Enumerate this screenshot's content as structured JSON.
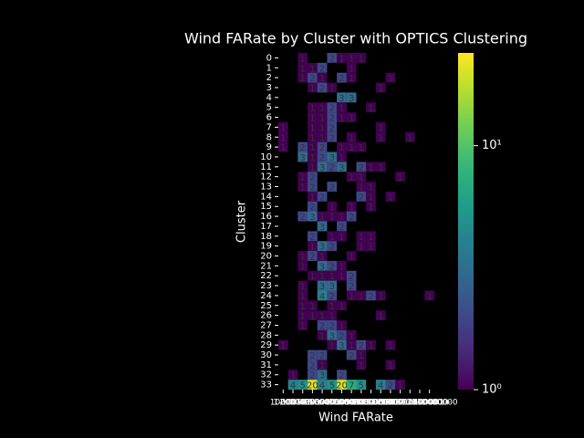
{
  "chart_data": {
    "type": "heatmap",
    "title": "Wind FARate by Cluster with OPTICS Clustering",
    "x_label": "Wind FARate",
    "y_label": "Cluster",
    "x_categories": [
      "0",
      "1-100000",
      "100001-200000",
      "200001-300000",
      "300001-400000",
      "400001-500000",
      "500001-600000",
      "600001-700000",
      "700001-800000",
      "800001-900000",
      "900001-1000000",
      "1000001-1100000",
      "1100001-1200000",
      "1200001-1300000",
      "1300001-1400000",
      "1400001+"
    ],
    "y_categories": [
      "0",
      "1",
      "2",
      "3",
      "4",
      "5",
      "6",
      "7",
      "8",
      "9",
      "10",
      "11",
      "12",
      "13",
      "14",
      "15",
      "16",
      "17",
      "18",
      "19",
      "20",
      "21",
      "22",
      "23",
      "24",
      "25",
      "26",
      "27",
      "28",
      "29",
      "30",
      "31",
      "32",
      "33"
    ],
    "values": [
      [
        null,
        null,
        1,
        null,
        null,
        2,
        1,
        1,
        1,
        null,
        null,
        null,
        null,
        null,
        null,
        null
      ],
      [
        null,
        null,
        1,
        1,
        2,
        null,
        null,
        1,
        null,
        null,
        null,
        null,
        null,
        null,
        null,
        null
      ],
      [
        null,
        null,
        1,
        2,
        1,
        null,
        2,
        1,
        null,
        null,
        null,
        1,
        null,
        null,
        null,
        null
      ],
      [
        null,
        null,
        null,
        1,
        2,
        1,
        null,
        null,
        null,
        null,
        1,
        null,
        null,
        null,
        null,
        null
      ],
      [
        null,
        null,
        null,
        null,
        null,
        null,
        3,
        3,
        null,
        null,
        null,
        null,
        null,
        null,
        null,
        null
      ],
      [
        null,
        null,
        null,
        1,
        1,
        2,
        1,
        null,
        null,
        1,
        null,
        null,
        null,
        null,
        null,
        null
      ],
      [
        null,
        null,
        null,
        1,
        1,
        2,
        1,
        1,
        null,
        null,
        null,
        null,
        null,
        null,
        null,
        null
      ],
      [
        1,
        null,
        null,
        1,
        1,
        2,
        null,
        null,
        null,
        null,
        1,
        null,
        null,
        null,
        null,
        null
      ],
      [
        1,
        null,
        null,
        1,
        1,
        2,
        null,
        1,
        null,
        null,
        1,
        null,
        null,
        1,
        null,
        null
      ],
      [
        1,
        null,
        2,
        1,
        2,
        null,
        1,
        1,
        1,
        null,
        null,
        null,
        null,
        null,
        null,
        null
      ],
      [
        null,
        null,
        3,
        1,
        2,
        3,
        1,
        null,
        null,
        null,
        null,
        null,
        null,
        null,
        null,
        null
      ],
      [
        null,
        null,
        null,
        1,
        3,
        2,
        3,
        null,
        2,
        1,
        1,
        null,
        null,
        null,
        null,
        null
      ],
      [
        null,
        null,
        1,
        2,
        null,
        null,
        null,
        1,
        1,
        null,
        null,
        null,
        1,
        null,
        null,
        null
      ],
      [
        null,
        null,
        1,
        2,
        null,
        2,
        null,
        null,
        1,
        1,
        null,
        null,
        null,
        null,
        null,
        null
      ],
      [
        null,
        null,
        null,
        1,
        2,
        null,
        null,
        null,
        2,
        1,
        null,
        1,
        null,
        null,
        null,
        null
      ],
      [
        null,
        null,
        null,
        2,
        null,
        1,
        null,
        1,
        null,
        1,
        null,
        null,
        null,
        null,
        null,
        null
      ],
      [
        null,
        null,
        2,
        3,
        1,
        1,
        1,
        2,
        null,
        null,
        null,
        null,
        null,
        null,
        null,
        null
      ],
      [
        null,
        null,
        null,
        null,
        3,
        null,
        2,
        null,
        null,
        null,
        null,
        null,
        null,
        null,
        null,
        null
      ],
      [
        null,
        null,
        null,
        2,
        null,
        1,
        1,
        null,
        1,
        1,
        null,
        null,
        null,
        null,
        null,
        null
      ],
      [
        null,
        null,
        null,
        1,
        3,
        2,
        null,
        null,
        1,
        1,
        null,
        null,
        null,
        null,
        null,
        null
      ],
      [
        null,
        null,
        1,
        2,
        1,
        null,
        null,
        1,
        null,
        null,
        null,
        null,
        null,
        null,
        null,
        null
      ],
      [
        null,
        null,
        1,
        null,
        3,
        2,
        1,
        null,
        null,
        null,
        null,
        null,
        null,
        null,
        null,
        null
      ],
      [
        null,
        null,
        null,
        1,
        1,
        1,
        1,
        2,
        null,
        null,
        null,
        null,
        null,
        null,
        null,
        null
      ],
      [
        null,
        null,
        1,
        null,
        3,
        3,
        null,
        2,
        null,
        null,
        null,
        null,
        null,
        null,
        null,
        null
      ],
      [
        null,
        null,
        1,
        null,
        4,
        2,
        null,
        1,
        1,
        2,
        1,
        null,
        null,
        null,
        null,
        1
      ],
      [
        null,
        null,
        1,
        1,
        null,
        1,
        1,
        null,
        null,
        null,
        null,
        null,
        null,
        null,
        null,
        null
      ],
      [
        null,
        null,
        1,
        1,
        1,
        1,
        null,
        null,
        null,
        null,
        1,
        null,
        null,
        null,
        null,
        null
      ],
      [
        null,
        null,
        1,
        null,
        2,
        2,
        1,
        null,
        null,
        null,
        null,
        null,
        null,
        null,
        null,
        null
      ],
      [
        null,
        null,
        null,
        null,
        1,
        3,
        2,
        1,
        null,
        null,
        null,
        null,
        null,
        null,
        null,
        null
      ],
      [
        1,
        null,
        null,
        null,
        null,
        1,
        3,
        1,
        2,
        1,
        null,
        1,
        null,
        null,
        null,
        null
      ],
      [
        null,
        null,
        null,
        2,
        2,
        null,
        null,
        2,
        1,
        null,
        null,
        null,
        null,
        null,
        null,
        null
      ],
      [
        null,
        null,
        null,
        2,
        1,
        null,
        null,
        null,
        1,
        null,
        null,
        1,
        null,
        null,
        null,
        null
      ],
      [
        null,
        1,
        null,
        2,
        3,
        null,
        2,
        null,
        null,
        null,
        null,
        null,
        null,
        null,
        null,
        null
      ],
      [
        null,
        4,
        5,
        20,
        4,
        5,
        20,
        7,
        5,
        null,
        4,
        2,
        1,
        null,
        null,
        null
      ]
    ],
    "clim": [
      1,
      24
    ],
    "log_scale": true,
    "colormap": "viridis",
    "cticks": [
      {
        "value": 1,
        "label": "10⁰"
      },
      {
        "value": 10,
        "label": "10¹"
      }
    ]
  }
}
